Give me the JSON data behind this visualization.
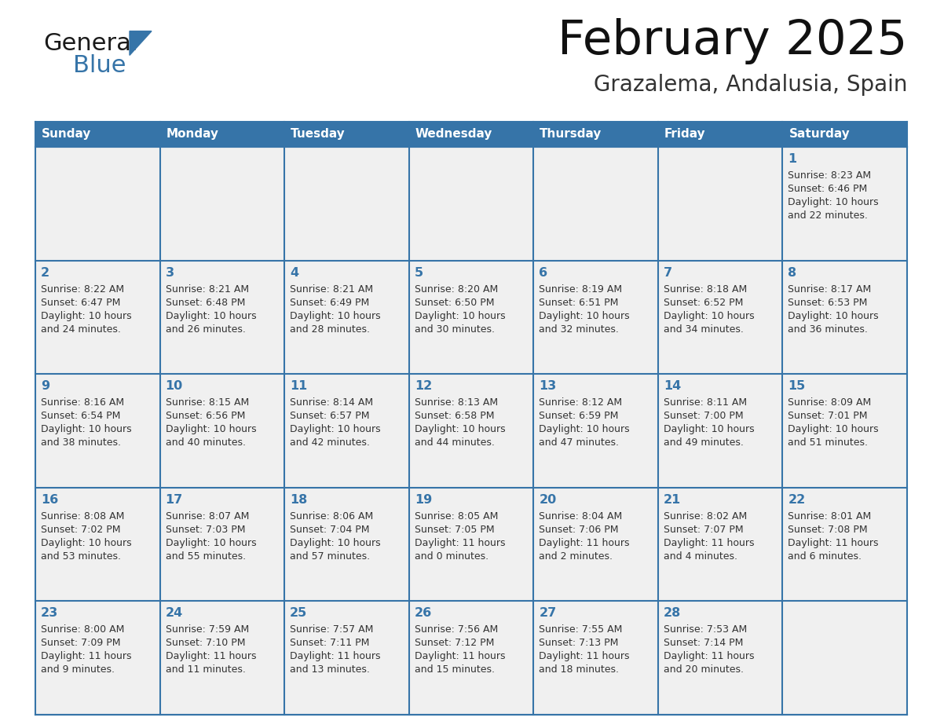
{
  "title": "February 2025",
  "subtitle": "Grazalema, Andalusia, Spain",
  "days_of_week": [
    "Sunday",
    "Monday",
    "Tuesday",
    "Wednesday",
    "Thursday",
    "Friday",
    "Saturday"
  ],
  "header_bg": "#3674A8",
  "header_text": "#ffffff",
  "cell_bg": "#f0f0f0",
  "cell_bg2": "#ffffff",
  "cell_border": "#3674A8",
  "day_num_color": "#3674A8",
  "info_text_color": "#333333",
  "logo_general_color": "#1a1a1a",
  "logo_blue_color": "#3674A8",
  "week_rows": [
    [
      {
        "day": "",
        "info": ""
      },
      {
        "day": "",
        "info": ""
      },
      {
        "day": "",
        "info": ""
      },
      {
        "day": "",
        "info": ""
      },
      {
        "day": "",
        "info": ""
      },
      {
        "day": "",
        "info": ""
      },
      {
        "day": "1",
        "info": "Sunrise: 8:23 AM\nSunset: 6:46 PM\nDaylight: 10 hours\nand 22 minutes."
      }
    ],
    [
      {
        "day": "2",
        "info": "Sunrise: 8:22 AM\nSunset: 6:47 PM\nDaylight: 10 hours\nand 24 minutes."
      },
      {
        "day": "3",
        "info": "Sunrise: 8:21 AM\nSunset: 6:48 PM\nDaylight: 10 hours\nand 26 minutes."
      },
      {
        "day": "4",
        "info": "Sunrise: 8:21 AM\nSunset: 6:49 PM\nDaylight: 10 hours\nand 28 minutes."
      },
      {
        "day": "5",
        "info": "Sunrise: 8:20 AM\nSunset: 6:50 PM\nDaylight: 10 hours\nand 30 minutes."
      },
      {
        "day": "6",
        "info": "Sunrise: 8:19 AM\nSunset: 6:51 PM\nDaylight: 10 hours\nand 32 minutes."
      },
      {
        "day": "7",
        "info": "Sunrise: 8:18 AM\nSunset: 6:52 PM\nDaylight: 10 hours\nand 34 minutes."
      },
      {
        "day": "8",
        "info": "Sunrise: 8:17 AM\nSunset: 6:53 PM\nDaylight: 10 hours\nand 36 minutes."
      }
    ],
    [
      {
        "day": "9",
        "info": "Sunrise: 8:16 AM\nSunset: 6:54 PM\nDaylight: 10 hours\nand 38 minutes."
      },
      {
        "day": "10",
        "info": "Sunrise: 8:15 AM\nSunset: 6:56 PM\nDaylight: 10 hours\nand 40 minutes."
      },
      {
        "day": "11",
        "info": "Sunrise: 8:14 AM\nSunset: 6:57 PM\nDaylight: 10 hours\nand 42 minutes."
      },
      {
        "day": "12",
        "info": "Sunrise: 8:13 AM\nSunset: 6:58 PM\nDaylight: 10 hours\nand 44 minutes."
      },
      {
        "day": "13",
        "info": "Sunrise: 8:12 AM\nSunset: 6:59 PM\nDaylight: 10 hours\nand 47 minutes."
      },
      {
        "day": "14",
        "info": "Sunrise: 8:11 AM\nSunset: 7:00 PM\nDaylight: 10 hours\nand 49 minutes."
      },
      {
        "day": "15",
        "info": "Sunrise: 8:09 AM\nSunset: 7:01 PM\nDaylight: 10 hours\nand 51 minutes."
      }
    ],
    [
      {
        "day": "16",
        "info": "Sunrise: 8:08 AM\nSunset: 7:02 PM\nDaylight: 10 hours\nand 53 minutes."
      },
      {
        "day": "17",
        "info": "Sunrise: 8:07 AM\nSunset: 7:03 PM\nDaylight: 10 hours\nand 55 minutes."
      },
      {
        "day": "18",
        "info": "Sunrise: 8:06 AM\nSunset: 7:04 PM\nDaylight: 10 hours\nand 57 minutes."
      },
      {
        "day": "19",
        "info": "Sunrise: 8:05 AM\nSunset: 7:05 PM\nDaylight: 11 hours\nand 0 minutes."
      },
      {
        "day": "20",
        "info": "Sunrise: 8:04 AM\nSunset: 7:06 PM\nDaylight: 11 hours\nand 2 minutes."
      },
      {
        "day": "21",
        "info": "Sunrise: 8:02 AM\nSunset: 7:07 PM\nDaylight: 11 hours\nand 4 minutes."
      },
      {
        "day": "22",
        "info": "Sunrise: 8:01 AM\nSunset: 7:08 PM\nDaylight: 11 hours\nand 6 minutes."
      }
    ],
    [
      {
        "day": "23",
        "info": "Sunrise: 8:00 AM\nSunset: 7:09 PM\nDaylight: 11 hours\nand 9 minutes."
      },
      {
        "day": "24",
        "info": "Sunrise: 7:59 AM\nSunset: 7:10 PM\nDaylight: 11 hours\nand 11 minutes."
      },
      {
        "day": "25",
        "info": "Sunrise: 7:57 AM\nSunset: 7:11 PM\nDaylight: 11 hours\nand 13 minutes."
      },
      {
        "day": "26",
        "info": "Sunrise: 7:56 AM\nSunset: 7:12 PM\nDaylight: 11 hours\nand 15 minutes."
      },
      {
        "day": "27",
        "info": "Sunrise: 7:55 AM\nSunset: 7:13 PM\nDaylight: 11 hours\nand 18 minutes."
      },
      {
        "day": "28",
        "info": "Sunrise: 7:53 AM\nSunset: 7:14 PM\nDaylight: 11 hours\nand 20 minutes."
      },
      {
        "day": "",
        "info": ""
      }
    ]
  ]
}
